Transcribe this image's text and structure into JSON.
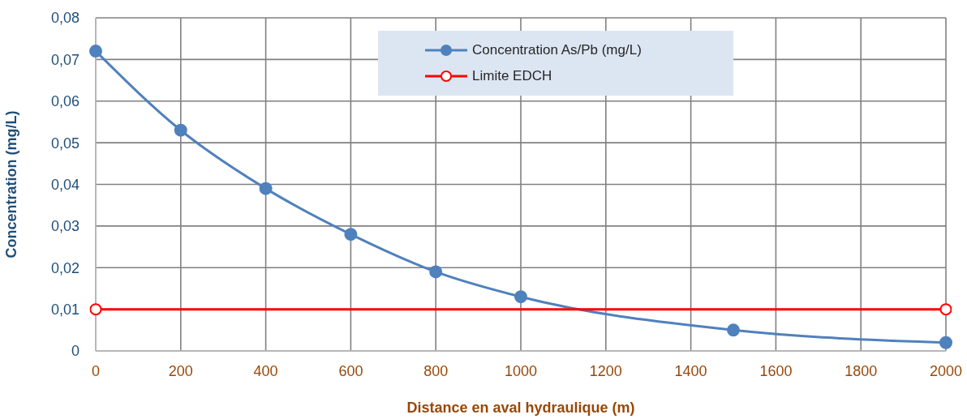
{
  "chart_data": {
    "type": "line",
    "xlabel": "Distance en aval hydraulique (m)",
    "ylabel": "Concentration (mg/L)",
    "series": [
      {
        "name": "Concentration As/Pb (mg/L)",
        "color": "#4f81bd",
        "x": [
          0,
          200,
          400,
          600,
          800,
          1000,
          1500,
          2000
        ],
        "values": [
          0.072,
          0.053,
          0.039,
          0.028,
          0.019,
          0.013,
          0.005,
          0.002
        ]
      },
      {
        "name": "Limite EDCH",
        "color": "#ff0000",
        "x": [
          0,
          2000
        ],
        "values": [
          0.01,
          0.01
        ]
      }
    ],
    "xlim": [
      0,
      2000
    ],
    "xticks": [
      0,
      200,
      400,
      600,
      800,
      1000,
      1200,
      1400,
      1600,
      1800,
      2000
    ],
    "ylim": [
      0,
      0.08
    ],
    "yticks": [
      0,
      {
        "value": 0.01,
        "label": "0,01"
      },
      {
        "value": 0.02,
        "label": "0,02"
      },
      {
        "value": 0.03,
        "label": "0,03"
      },
      {
        "value": 0.04,
        "label": "0,04"
      },
      {
        "value": 0.05,
        "label": "0,05"
      },
      {
        "value": 0.06,
        "label": "0,06"
      },
      {
        "value": 0.07,
        "label": "0,07"
      },
      {
        "value": 0.08,
        "label": "0,08"
      }
    ],
    "grid": true,
    "legend": "top",
    "marker": "circle",
    "line_style": "solid"
  }
}
